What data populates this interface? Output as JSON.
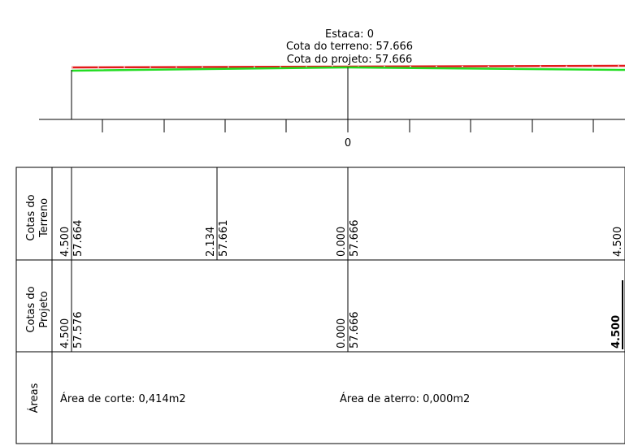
{
  "header": {
    "estaca": "Estaca: 0",
    "cota_terreno": "Cota do terreno: 57.666",
    "cota_projeto": "Cota do projeto: 57.666"
  },
  "axis": {
    "center_label": "0"
  },
  "colors": {
    "terrain": "#e31a1a",
    "project": "#22dd22",
    "lines": "#000000"
  },
  "rows": {
    "terreno": {
      "label_line1": "Cotas do",
      "label_line2": "Terreno",
      "columns": [
        {
          "offset": "4.500",
          "elev": "57.664"
        },
        {
          "offset": "2.134",
          "elev": "57.661"
        },
        {
          "offset": "0.000",
          "elev": "57.666"
        },
        {
          "offset": "4.500",
          "elev": ""
        }
      ]
    },
    "projeto": {
      "label_line1": "Cotas do",
      "label_line2": "Projeto",
      "columns": [
        {
          "offset": "4.500",
          "elev": "57.576"
        },
        {
          "offset": "0.000",
          "elev": "57.666"
        },
        {
          "offset": "4.500",
          "elev": ""
        }
      ]
    },
    "areas": {
      "label": "Áreas",
      "corte": "Área de corte: 0,414m2",
      "aterro": "Área de aterro: 0,000m2"
    }
  }
}
